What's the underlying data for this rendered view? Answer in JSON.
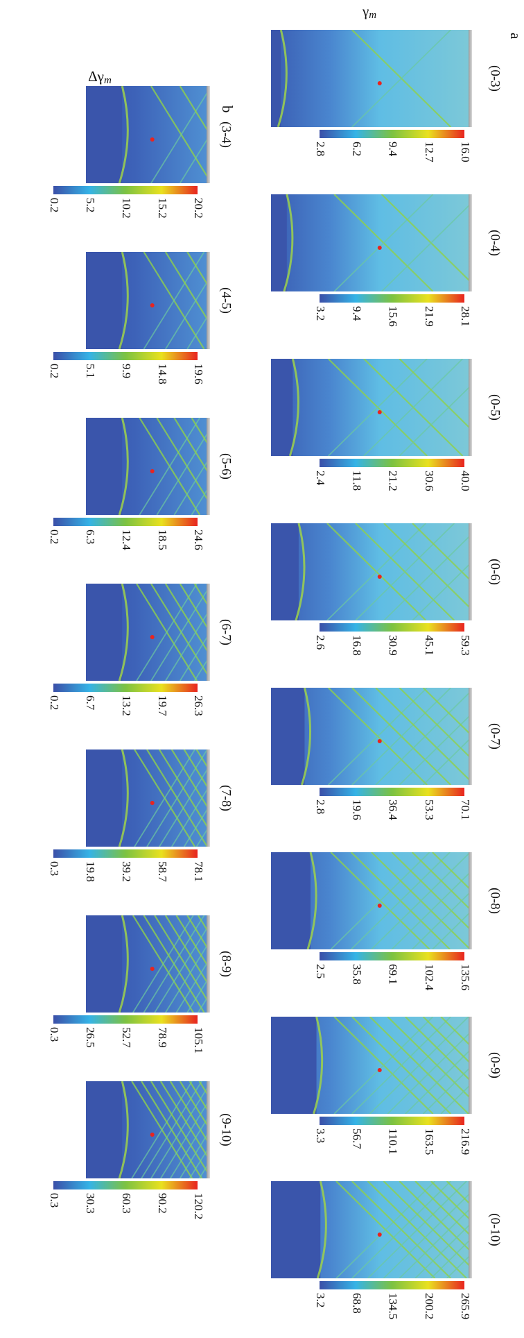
{
  "rows": [
    {
      "letter": "a",
      "title_symbol": "γ",
      "title_subscript": "m",
      "panels": [
        {
          "label": "(0-3)",
          "colorbar_ticks": [
            "2.8",
            "6.2",
            "9.4",
            "12.7",
            "16.0"
          ]
        },
        {
          "label": "(0-4)",
          "colorbar_ticks": [
            "3.2",
            "9.4",
            "15.6",
            "21.9",
            "28.1"
          ]
        },
        {
          "label": "(0-5)",
          "colorbar_ticks": [
            "2.4",
            "11.8",
            "21.2",
            "30.6",
            "40.0"
          ]
        },
        {
          "label": "(0-6)",
          "colorbar_ticks": [
            "2.6",
            "16.8",
            "30.9",
            "45.1",
            "59.3"
          ]
        },
        {
          "label": "(0-7)",
          "colorbar_ticks": [
            "2.8",
            "19.6",
            "36.4",
            "53.3",
            "70.1"
          ]
        },
        {
          "label": "(0-8)",
          "colorbar_ticks": [
            "2.5",
            "35.8",
            "69.1",
            "102.4",
            "135.6"
          ]
        },
        {
          "label": "(0-9)",
          "colorbar_ticks": [
            "3.3",
            "56.7",
            "110.1",
            "163.5",
            "216.9"
          ]
        },
        {
          "label": "(0-10)",
          "colorbar_ticks": [
            "3.2",
            "68.8",
            "134.5",
            "200.2",
            "265.9"
          ]
        }
      ]
    },
    {
      "letter": "b",
      "title_symbol": "Δγ",
      "title_subscript": "m",
      "panels": [
        {
          "label": "(3-4)",
          "colorbar_ticks": [
            "0.2",
            "5.2",
            "10.2",
            "15.2",
            "20.2"
          ]
        },
        {
          "label": "(4-5)",
          "colorbar_ticks": [
            "0.2",
            "5.1",
            "9.9",
            "14.8",
            "19.6"
          ]
        },
        {
          "label": "(5-6)",
          "colorbar_ticks": [
            "0.2",
            "6.3",
            "12.4",
            "18.5",
            "24.6"
          ]
        },
        {
          "label": "(6-7)",
          "colorbar_ticks": [
            "0.2",
            "6.7",
            "13.2",
            "19.7",
            "26.3"
          ]
        },
        {
          "label": "(7-8)",
          "colorbar_ticks": [
            "0.3",
            "19.8",
            "39.2",
            "58.7",
            "78.1"
          ]
        },
        {
          "label": "(8-9)",
          "colorbar_ticks": [
            "0.3",
            "26.5",
            "52.7",
            "78.9",
            "105.1"
          ]
        },
        {
          "label": "(9-10)",
          "colorbar_ticks": [
            "0.3",
            "30.3",
            "60.3",
            "90.2",
            "120.2"
          ]
        }
      ]
    }
  ]
}
